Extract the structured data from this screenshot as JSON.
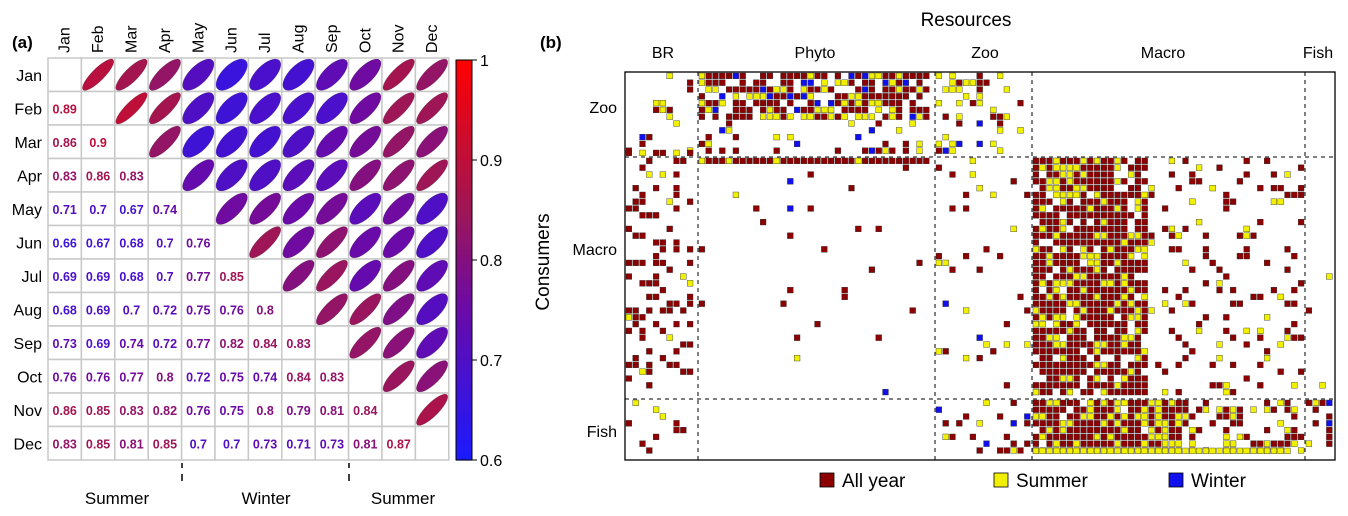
{
  "chart_data": [
    {
      "type": "heatmap",
      "panel_label": "(a)",
      "months": [
        "Jan",
        "Feb",
        "Mar",
        "Apr",
        "May",
        "Jun",
        "Jul",
        "Aug",
        "Sep",
        "Oct",
        "Nov",
        "Dec"
      ],
      "correlations_lower": [
        [],
        [
          0.89
        ],
        [
          0.86,
          0.9
        ],
        [
          0.83,
          0.86,
          0.83
        ],
        [
          0.71,
          0.7,
          0.67,
          0.74
        ],
        [
          0.66,
          0.67,
          0.68,
          0.7,
          0.76
        ],
        [
          0.69,
          0.69,
          0.68,
          0.7,
          0.77,
          0.85
        ],
        [
          0.68,
          0.69,
          0.7,
          0.72,
          0.75,
          0.76,
          0.8
        ],
        [
          0.73,
          0.69,
          0.74,
          0.72,
          0.77,
          0.82,
          0.84,
          0.83
        ],
        [
          0.76,
          0.76,
          0.77,
          0.8,
          0.72,
          0.75,
          0.74,
          0.84,
          0.83
        ],
        [
          0.86,
          0.85,
          0.83,
          0.82,
          0.76,
          0.75,
          0.8,
          0.79,
          0.81,
          0.84
        ],
        [
          0.83,
          0.85,
          0.81,
          0.85,
          0.7,
          0.7,
          0.73,
          0.71,
          0.73,
          0.81,
          0.87
        ]
      ],
      "colorbar": {
        "min": 0.6,
        "max": 1,
        "ticks": [
          "0.6",
          "0.7",
          "0.8",
          "0.9",
          "1"
        ]
      },
      "colors": {
        "low": "#1a1aff",
        "mid_low": "#6a0aa8",
        "mid": "#9e1656",
        "high": "#ff0000"
      },
      "season_labels": [
        "Summer",
        "Winter",
        "Summer"
      ]
    },
    {
      "type": "heatmap",
      "panel_label": "(b)",
      "title": "Resources",
      "ylabel": "Consumers",
      "resource_groups": [
        "BR",
        "Phyto",
        "Zoo",
        "Macro",
        "Fish"
      ],
      "consumer_groups": [
        "Zoo",
        "Macro",
        "Fish"
      ],
      "legend": [
        {
          "label": "All year",
          "color": "#8b0000"
        },
        {
          "label": "Summer",
          "color": "#f0f000"
        },
        {
          "label": "Winter",
          "color": "#1010ee"
        }
      ]
    }
  ]
}
